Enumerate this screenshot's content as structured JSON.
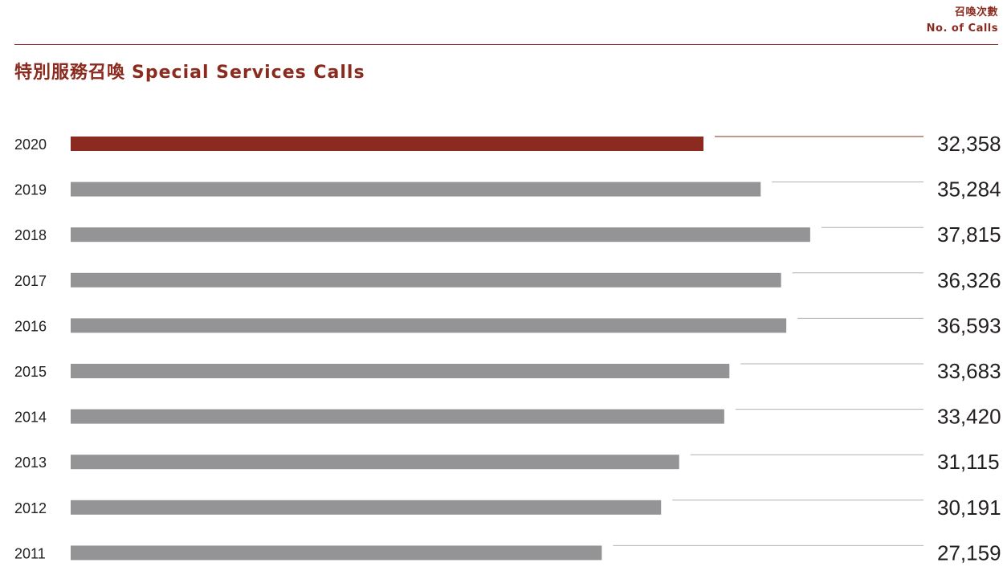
{
  "unit_label": {
    "zh": "召喚次數",
    "en": "No. of Calls"
  },
  "title": {
    "zh": "特別服務召喚",
    "en": "Special Services Calls"
  },
  "colors": {
    "accent": "#8b2a1e",
    "highlight_bar": "#8b2a1e",
    "bar": "#949497",
    "leader_line": "#b0b0b0"
  },
  "chart_data": {
    "type": "bar",
    "orientation": "horizontal",
    "categories": [
      "2020",
      "2019",
      "2018",
      "2017",
      "2016",
      "2015",
      "2014",
      "2013",
      "2012",
      "2011"
    ],
    "values": [
      32358,
      35284,
      37815,
      36326,
      36593,
      33683,
      33420,
      31115,
      30191,
      27159
    ],
    "value_labels": [
      "32,358",
      "35,284",
      "37,815",
      "36,326",
      "36,593",
      "33,683",
      "33,420",
      "31,115",
      "30,191",
      "27,159"
    ],
    "highlight": "2020",
    "xlim": [
      0,
      50000
    ],
    "grid": false,
    "legend": "none"
  }
}
